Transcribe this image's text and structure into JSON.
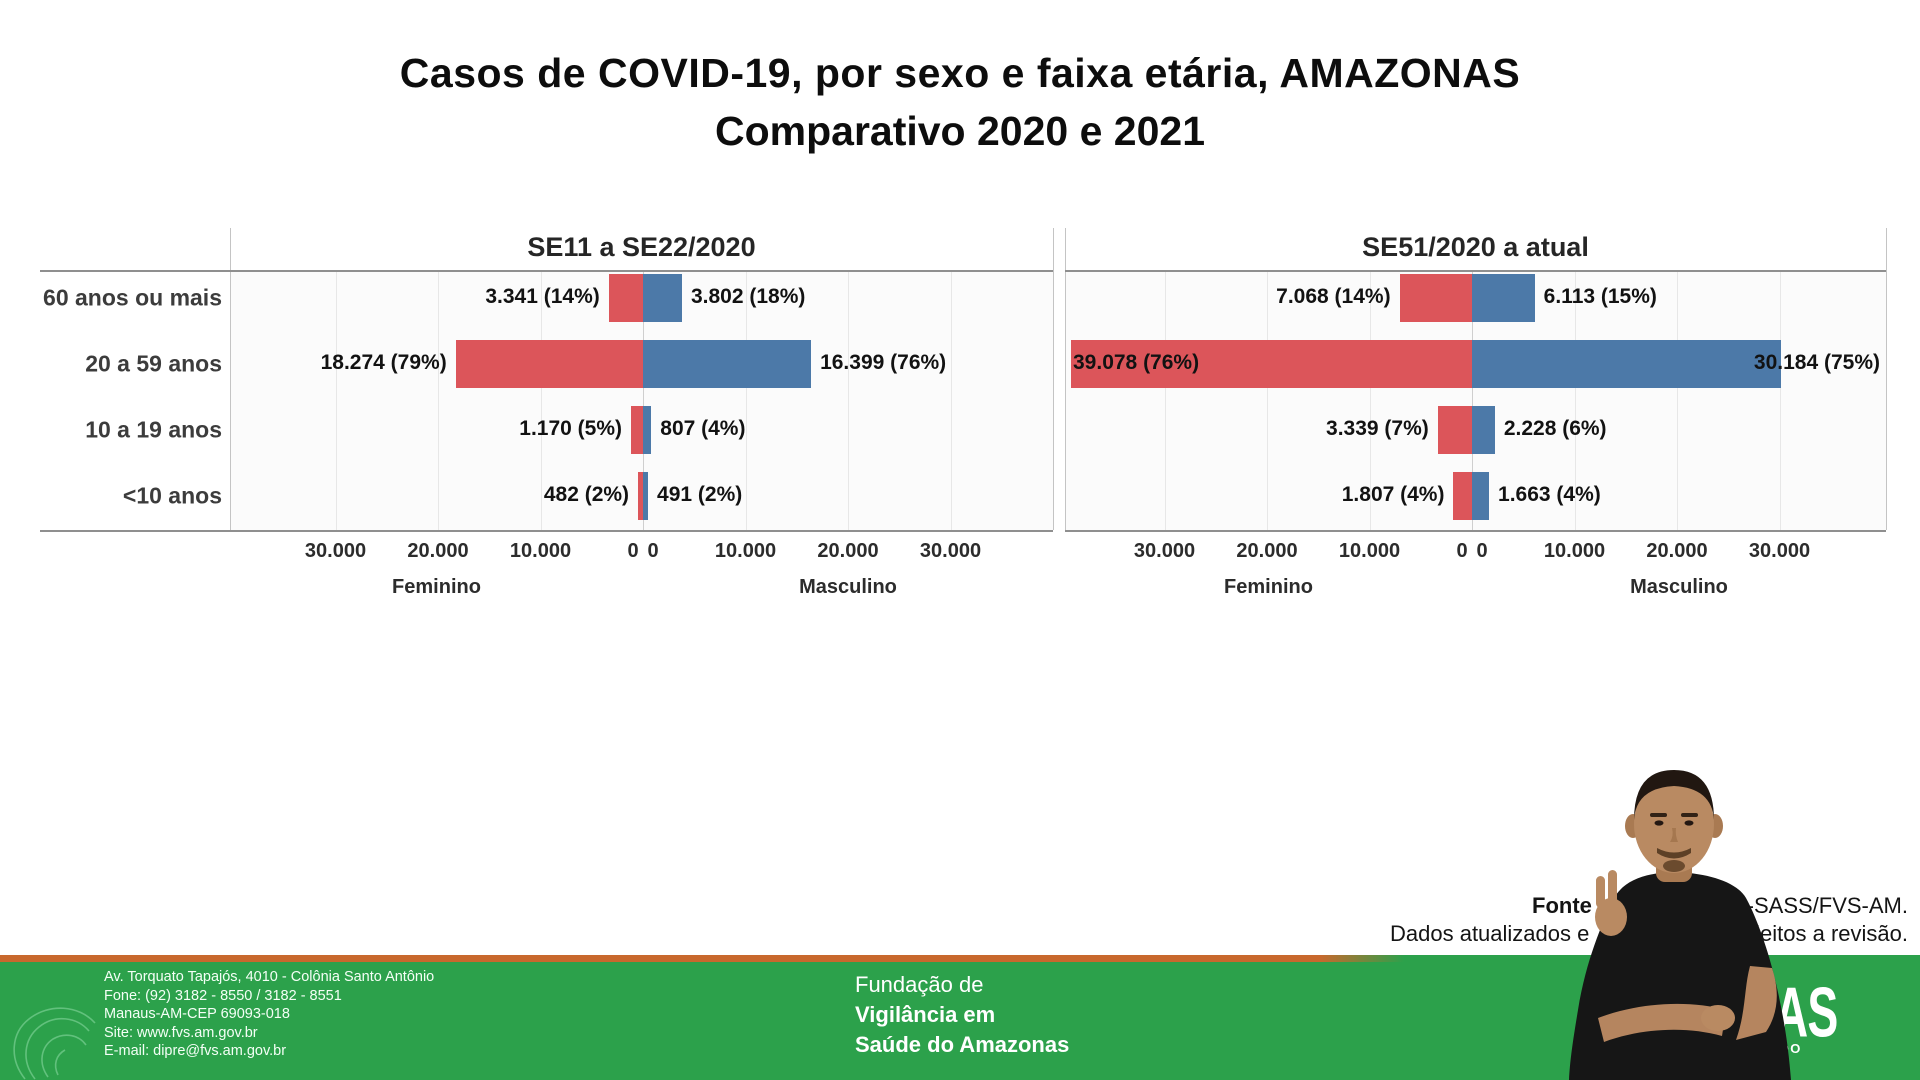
{
  "title": {
    "line1": "Casos de COVID-19, por sexo e faixa etária, AMAZONAS",
    "line2": "Comparativo 2020 e 2021"
  },
  "chart_data": {
    "type": "bar",
    "subtype": "population-pyramid-comparison",
    "categories": [
      "60 anos ou mais",
      "20 a 59 anos",
      "10 a 19 anos",
      "<10 anos"
    ],
    "axis": {
      "tick_labels_female": [
        "30.000",
        "20.000",
        "10.000",
        "0"
      ],
      "tick_labels_male": [
        "0",
        "10.000",
        "20.000",
        "30.000"
      ],
      "tick_values": [
        30000,
        20000,
        10000,
        0
      ],
      "xlabel_female": "Feminino",
      "xlabel_male": "Masculino",
      "xlim_per_side": [
        0,
        40000
      ],
      "grid": true
    },
    "colors": {
      "female": "#dc555a",
      "male": "#4c79a8"
    },
    "panels": [
      {
        "title": "SE11 a SE22/2020",
        "female": {
          "values": [
            3341,
            18274,
            1170,
            482
          ],
          "labels": [
            "3.341 (14%)",
            "18.274 (79%)",
            "1.170 (5%)",
            "482 (2%)"
          ],
          "label_inside": [
            false,
            false,
            false,
            false
          ]
        },
        "male": {
          "values": [
            3802,
            16399,
            807,
            491
          ],
          "labels": [
            "3.802 (18%)",
            "16.399 (76%)",
            "807 (4%)",
            "491 (2%)"
          ],
          "label_at_edge": [
            false,
            false,
            false,
            false
          ]
        }
      },
      {
        "title": "SE51/2020 a atual",
        "female": {
          "values": [
            7068,
            39078,
            3339,
            1807
          ],
          "labels": [
            "7.068 (14%)",
            "39.078 (76%)",
            "3.339 (7%)",
            "1.807 (4%)"
          ],
          "label_inside": [
            false,
            true,
            false,
            false
          ]
        },
        "male": {
          "values": [
            6113,
            30184,
            2228,
            1663
          ],
          "labels": [
            "6.113 (15%)",
            "30.184 (75%)",
            "2.228 (6%)",
            "1.663 (4%)"
          ],
          "label_at_edge": [
            false,
            true,
            false,
            false
          ]
        }
      }
    ]
  },
  "source_note": {
    "line1_left": "Fonte",
    "line1_right": "TEC-SASS/FVS-AM.",
    "line2_left": "Dados atualizados e",
    "line2_right": "jeitos a revisão."
  },
  "footer": {
    "address": [
      "Av. Torquato Tapajós, 4010 - Colônia Santo Antônio",
      "Fone: (92) 3182 - 8550 / 3182 - 8551",
      "Manaus-AM-CEP 69093-018",
      "Site: www.fvs.am.gov.br",
      "E-mail: dipre@fvs.am.gov.br"
    ],
    "org": {
      "line1": "Fundação de",
      "line2": "Vigilância em",
      "line3": "Saúde do Amazonas"
    },
    "logo": {
      "fragment": "NAS",
      "subtext": "DO ESTADO"
    },
    "colors": {
      "bar": "#2ca14b",
      "stripe": "#c8682d"
    }
  }
}
